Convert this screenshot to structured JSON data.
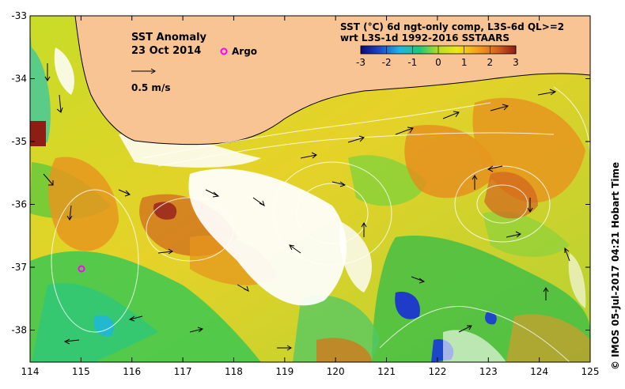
{
  "map": {
    "title": "SST Anomaly",
    "date": "23 Oct 2014",
    "argo_label": "Argo",
    "velocity_scale_label": "0.5 m/s",
    "colorbar_title_line1": "SST (°C) 6d ngt-only comp, L3S-6d QL>=2",
    "colorbar_title_line2": "wrt L3S-1d 1992-2016 SSTAARS",
    "colorbar_ticks": [
      "-3",
      "-2",
      "-1",
      "0",
      "1",
      "2",
      "3"
    ],
    "credit": "© IMOS 05-Jul-2017 04:21 Hobart Time",
    "x_ticks": [
      "114",
      "115",
      "116",
      "117",
      "118",
      "119",
      "120",
      "121",
      "122",
      "123",
      "124",
      "125"
    ],
    "y_ticks": [
      "-33",
      "-34",
      "-35",
      "-36",
      "-37",
      "-38"
    ],
    "colors": {
      "land": "#f9c493",
      "missing": "#ffffff",
      "argo_marker": "#ff00ff",
      "colorbar": [
        "#0a0a7a",
        "#1e46c8",
        "#1eb4e6",
        "#1ec878",
        "#b4dc28",
        "#f0e61e",
        "#f5a01e",
        "#d2641e",
        "#8c1e14"
      ]
    }
  }
}
